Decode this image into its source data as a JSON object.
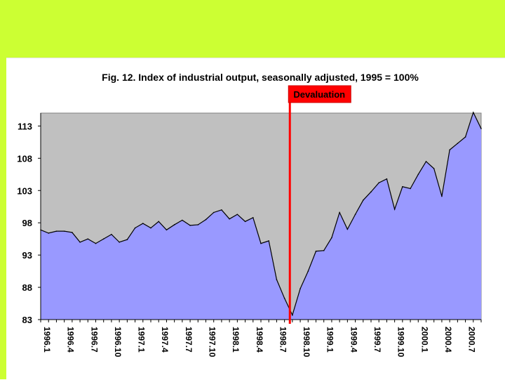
{
  "colors": {
    "band": "#ccff33",
    "plot_bg": "#c0c0c0",
    "area_fill": "#9999ff",
    "area_line": "#000000",
    "devaluation": "#ff0000"
  },
  "chart_data": {
    "type": "area",
    "title": "Fig. 12. Index of industrial output, seasonally adjusted, 1995 = 100%",
    "xlabel": "",
    "ylabel": "",
    "ylim": [
      83,
      115
    ],
    "yticks": [
      83,
      88,
      93,
      98,
      103,
      108,
      113
    ],
    "grid": false,
    "legend": "none",
    "xtick_labels": [
      "1996.1",
      "1996.4",
      "1996.7",
      "1996.10",
      "1997.1",
      "1997.4",
      "1997.7",
      "1997.10",
      "1998.1",
      "1998.4",
      "1998.7",
      "1998.10",
      "1999.1",
      "1999.4",
      "1999.7",
      "1999.10",
      "2000.1",
      "2000.4",
      "2000.7"
    ],
    "xtick_every": 3,
    "series": [
      {
        "name": "Index of industrial output",
        "start": "1996.1",
        "values": [
          96.9,
          96.4,
          96.7,
          96.7,
          96.5,
          95.0,
          95.5,
          94.8,
          95.5,
          96.2,
          95.0,
          95.4,
          97.2,
          97.9,
          97.2,
          98.2,
          96.9,
          97.7,
          98.4,
          97.6,
          97.7,
          98.5,
          99.6,
          100.0,
          98.6,
          99.3,
          98.2,
          98.8,
          94.8,
          95.2,
          89.2,
          86.3,
          83.7,
          87.8,
          90.5,
          93.6,
          93.7,
          95.7,
          99.6,
          97.0,
          99.3,
          101.5,
          102.8,
          104.2,
          104.8,
          100.1,
          103.6,
          103.3,
          105.5,
          107.5,
          106.4,
          102.1,
          109.3,
          110.3,
          111.3,
          115.1,
          112.6
        ]
      }
    ],
    "annotations": [
      {
        "label": "Devaluation",
        "at_index": 31.5
      }
    ]
  }
}
